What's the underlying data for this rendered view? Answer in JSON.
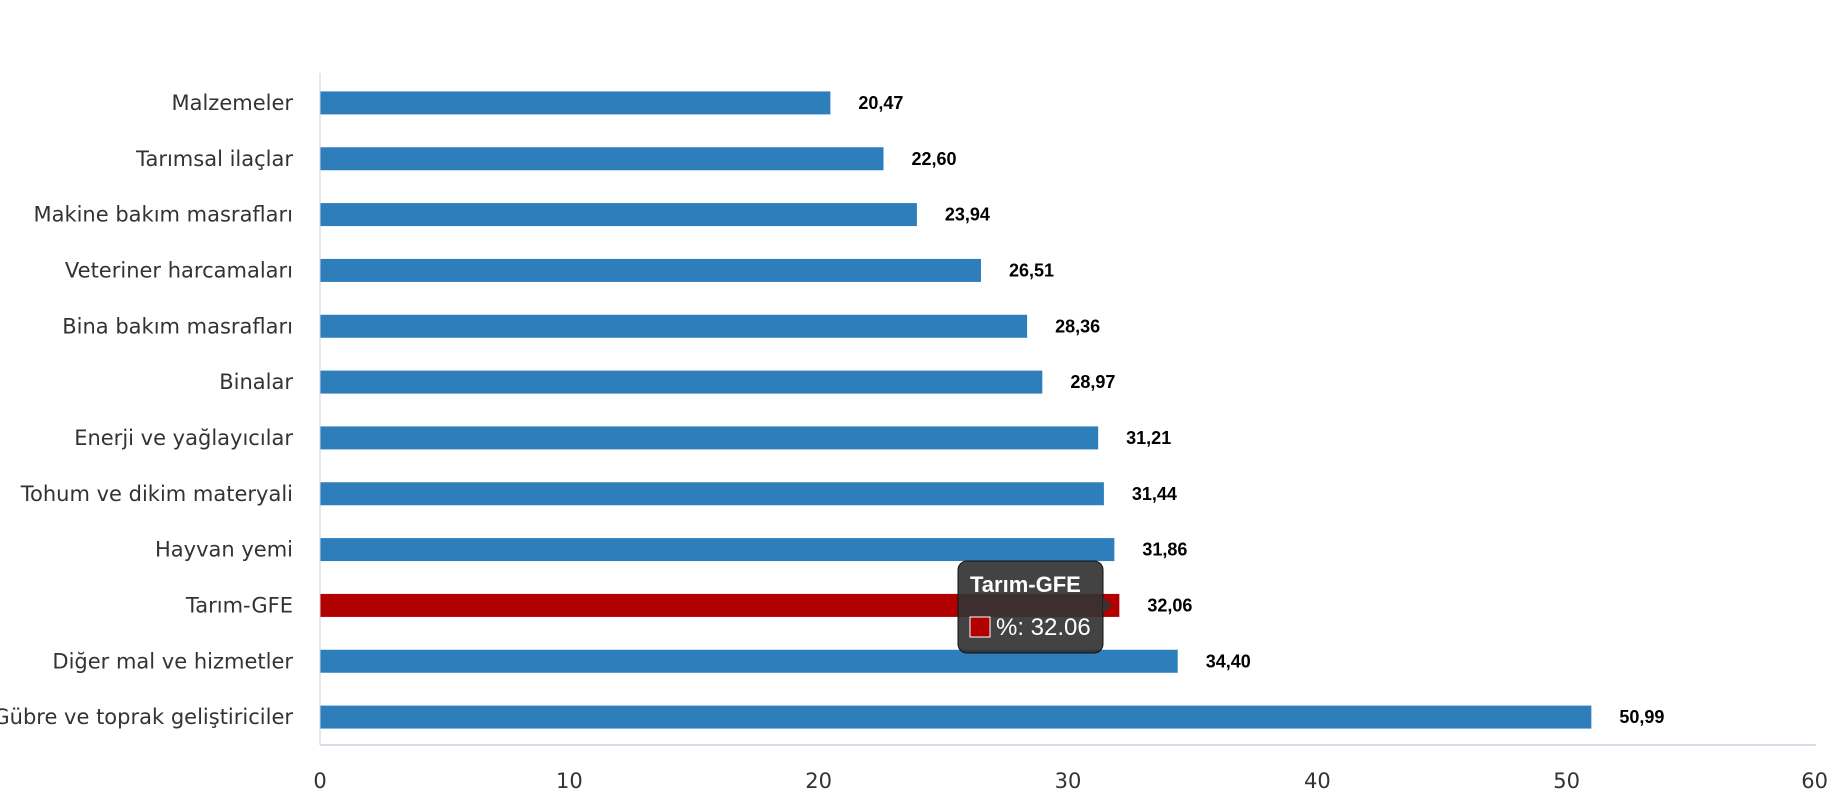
{
  "chart_data": {
    "type": "bar",
    "orientation": "horizontal",
    "categories": [
      "Malzemeler",
      "Tarımsal ilaçlar",
      "Makine bakım masrafları",
      "Veteriner harcamaları",
      "Bina bakım masrafları",
      "Binalar",
      "Enerji  ve yağlayıcılar",
      "Tohum ve dikim materyali",
      "Hayvan yemi",
      "Tarım-GFE",
      "Diğer mal ve hizmetler",
      "Gübre ve toprak geliştiriciler"
    ],
    "values": [
      20.47,
      22.6,
      23.94,
      26.51,
      28.36,
      28.97,
      31.21,
      31.44,
      31.86,
      32.06,
      34.4,
      50.99
    ],
    "value_labels": [
      "20,47",
      "22,60",
      "23,94",
      "26,51",
      "28,36",
      "28,97",
      "31,21",
      "31,44",
      "31,86",
      "32,06",
      "34,40",
      "50,99"
    ],
    "highlight_category": "Tarım-GFE",
    "colors": {
      "bar": "#2f7ebc",
      "highlight": "#b00000",
      "axis": "#c8d2e0",
      "tooltip_bg": "#333333"
    },
    "xlim": [
      0,
      60
    ],
    "xticks": [
      "0",
      "10",
      "20",
      "30",
      "40",
      "50",
      "60"
    ],
    "grid": false,
    "legend": "none",
    "tooltip": {
      "title": "Tarım-GFE",
      "value_text": "%: 32.06",
      "swatch_color": "#b00000"
    }
  }
}
